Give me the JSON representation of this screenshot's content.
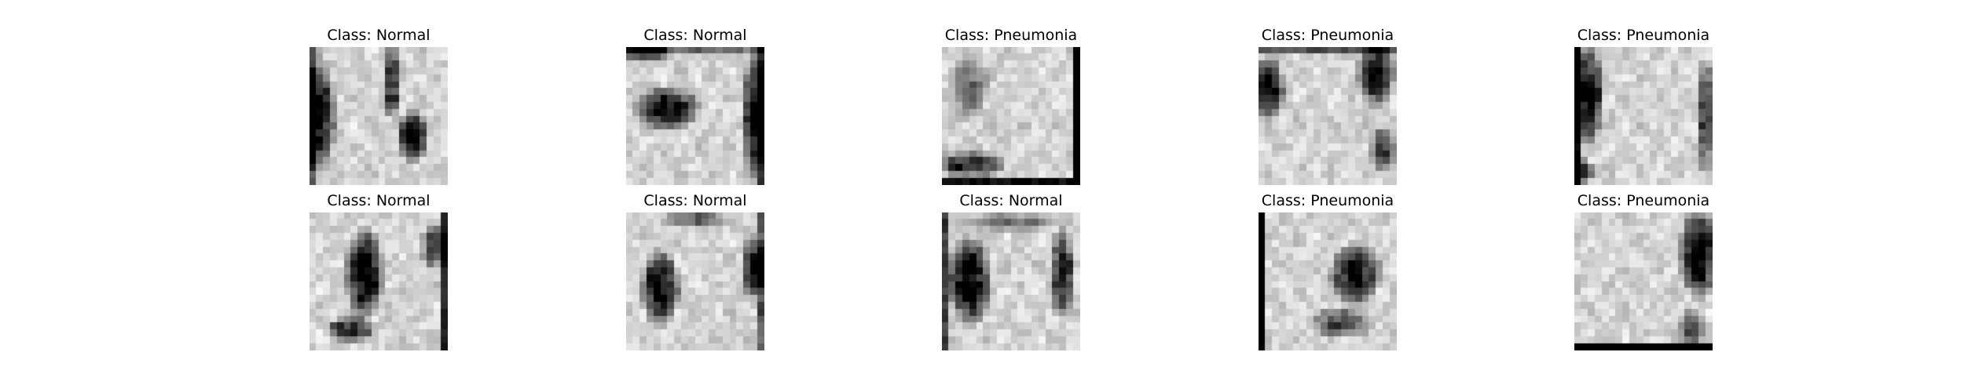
{
  "figure": {
    "rows": [
      {
        "cells": [
          {
            "title": "Class: Normal",
            "image": "pediatric-chest-xray-thumbnail"
          },
          {
            "title": "Class: Normal",
            "image": "pediatric-chest-xray-thumbnail"
          },
          {
            "title": "Class: Pneumonia",
            "image": "pediatric-chest-xray-thumbnail"
          },
          {
            "title": "Class: Pneumonia",
            "image": "pediatric-chest-xray-thumbnail"
          },
          {
            "title": "Class: Pneumonia",
            "image": "pediatric-chest-xray-thumbnail"
          }
        ]
      },
      {
        "cells": [
          {
            "title": "Class: Normal",
            "image": "pediatric-chest-xray-thumbnail"
          },
          {
            "title": "Class: Normal",
            "image": "pediatric-chest-xray-thumbnail"
          },
          {
            "title": "Class: Normal",
            "image": "pediatric-chest-xray-thumbnail"
          },
          {
            "title": "Class: Pneumonia",
            "image": "pediatric-chest-xray-thumbnail"
          },
          {
            "title": "Class: Pneumonia",
            "image": "pediatric-chest-xray-thumbnail"
          }
        ]
      }
    ]
  }
}
